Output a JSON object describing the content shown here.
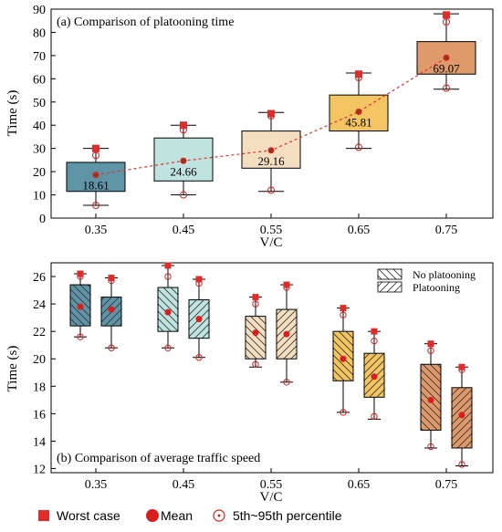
{
  "colors": {
    "v035": "#5f93a6",
    "v045": "#bfe3df",
    "v055": "#f3dfc0",
    "v065": "#f2c462",
    "v075": "#de9a6a",
    "mean": "#d81e1e",
    "worst": "#e02b2b",
    "mean_line": "#e03030",
    "mean_dot_top": "#6b4c1e"
  },
  "icons": {
    "worst": "red-square-icon",
    "mean": "red-dot-icon",
    "percentile": "open-circle-dot-icon"
  },
  "chart_data": [
    {
      "type": "box",
      "title": "(a) Comparison of platooning time",
      "xlabel": "V/C",
      "ylabel": "Time (s)",
      "ylim": [
        0,
        90
      ],
      "yticks": [
        "0",
        "10",
        "20",
        "30",
        "40",
        "50",
        "60",
        "70",
        "80",
        "90"
      ],
      "categories": [
        "0.35",
        "0.45",
        "0.55",
        "0.65",
        "0.75"
      ],
      "boxes": [
        {
          "whisker_low": 5.5,
          "q1": 11.5,
          "q3": 24,
          "whisker_high": 30,
          "mean": 18.61,
          "worst": 30,
          "p5": 5.5,
          "p95": 27,
          "mean_label": "18.61"
        },
        {
          "whisker_low": 10,
          "q1": 16,
          "q3": 34.5,
          "whisker_high": 40,
          "mean": 24.66,
          "worst": 40,
          "p5": 10,
          "p95": 38,
          "mean_label": "24.66"
        },
        {
          "whisker_low": 11.5,
          "q1": 21.5,
          "q3": 37.5,
          "whisker_high": 45.5,
          "mean": 29.16,
          "worst": 45,
          "p5": 12,
          "p95": 44,
          "mean_label": "29.16"
        },
        {
          "whisker_low": 30,
          "q1": 37.5,
          "q3": 53,
          "whisker_high": 62.5,
          "mean": 45.81,
          "worst": 62,
          "p5": 30.5,
          "p95": 60.5,
          "mean_label": "45.81"
        },
        {
          "whisker_low": 55.5,
          "q1": 62,
          "q3": 76,
          "whisker_high": 88,
          "mean": 69.07,
          "worst": 87.5,
          "p5": 56,
          "p95": 84.5,
          "mean_label": "69.07"
        }
      ]
    },
    {
      "type": "box",
      "title": "(b) Comparison of average traffic speed",
      "xlabel": "V/C",
      "ylabel": "Time (s)",
      "ylim": [
        11.7,
        27
      ],
      "yticks": [
        "12",
        "14",
        "16",
        "18",
        "20",
        "22",
        "24",
        "26"
      ],
      "categories": [
        "0.35",
        "0.45",
        "0.55",
        "0.65",
        "0.75"
      ],
      "legend": {
        "position": "top-right",
        "entries": [
          "No platooning",
          "Platooning"
        ]
      },
      "series": [
        {
          "name": "No platooning",
          "boxes": [
            {
              "whisker_low": 21.6,
              "q1": 22.4,
              "q3": 25.4,
              "whisker_high": 26.2,
              "mean": 23.8,
              "worst": 26.2,
              "p5": 21.6,
              "p95": 26.0
            },
            {
              "whisker_low": 20.8,
              "q1": 22.0,
              "q3": 25.2,
              "whisker_high": 26.8,
              "mean": 23.4,
              "worst": 26.8,
              "p5": 20.8,
              "p95": 26.0
            },
            {
              "whisker_low": 19.4,
              "q1": 20.0,
              "q3": 23.1,
              "whisker_high": 24.5,
              "mean": 21.9,
              "worst": 24.5,
              "p5": 19.6,
              "p95": 24.0
            },
            {
              "whisker_low": 16.1,
              "q1": 18.4,
              "q3": 22.0,
              "whisker_high": 23.7,
              "mean": 20.0,
              "worst": 23.7,
              "p5": 16.1,
              "p95": 23.2
            },
            {
              "whisker_low": 13.5,
              "q1": 14.8,
              "q3": 19.6,
              "whisker_high": 21.1,
              "mean": 17.0,
              "worst": 21.1,
              "p5": 13.6,
              "p95": 20.6
            }
          ]
        },
        {
          "name": "Platooning",
          "boxes": [
            {
              "whisker_low": 20.8,
              "q1": 22.4,
              "q3": 24.5,
              "whisker_high": 25.9,
              "mean": 23.6,
              "worst": 25.9,
              "p5": 20.8,
              "p95": 25.7
            },
            {
              "whisker_low": 20.1,
              "q1": 21.5,
              "q3": 24.3,
              "whisker_high": 25.8,
              "mean": 22.9,
              "worst": 25.8,
              "p5": 20.1,
              "p95": 25.5
            },
            {
              "whisker_low": 18.3,
              "q1": 20.0,
              "q3": 23.6,
              "whisker_high": 25.4,
              "mean": 21.8,
              "worst": 25.4,
              "p5": 18.3,
              "p95": 25.2
            },
            {
              "whisker_low": 15.6,
              "q1": 17.2,
              "q3": 20.4,
              "whisker_high": 22.0,
              "mean": 18.7,
              "worst": 22.0,
              "p5": 15.8,
              "p95": 21.3
            },
            {
              "whisker_low": 12.2,
              "q1": 13.5,
              "q3": 17.9,
              "whisker_high": 19.4,
              "mean": 15.9,
              "worst": 19.4,
              "p5": 12.3,
              "p95": 19.2
            }
          ]
        }
      ]
    }
  ],
  "bottom_legend": {
    "worst": "Worst case",
    "mean": "Mean",
    "percentile": "5th~95th percentile"
  }
}
